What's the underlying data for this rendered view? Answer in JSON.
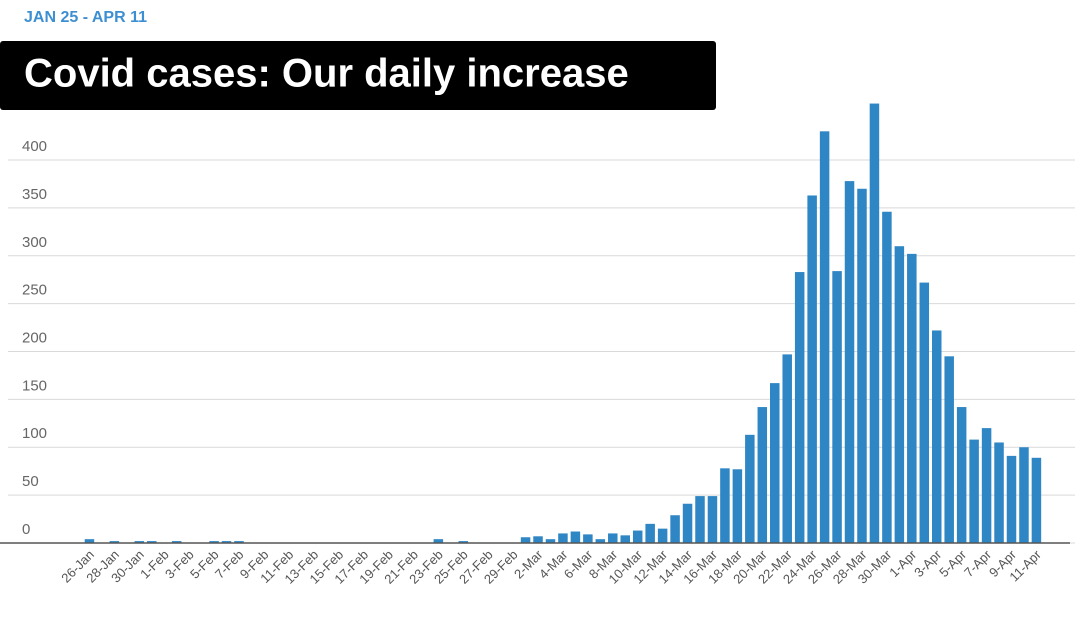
{
  "chart_data": {
    "type": "bar",
    "subtitle": "JAN 25 - APR 11",
    "title": "Covid cases: Our daily increase",
    "color": "#2f86c4",
    "grid": true,
    "ylim": [
      0,
      460
    ],
    "yticks": [
      0,
      50,
      100,
      150,
      200,
      250,
      300,
      350,
      400
    ],
    "categories": [
      null,
      "26-Jan",
      null,
      "28-Jan",
      null,
      "30-Jan",
      null,
      "1-Feb",
      null,
      "3-Feb",
      null,
      "5-Feb",
      null,
      "7-Feb",
      null,
      "9-Feb",
      null,
      "11-Feb",
      null,
      "13-Feb",
      null,
      "15-Feb",
      null,
      "17-Feb",
      null,
      "19-Feb",
      null,
      "21-Feb",
      null,
      "23-Feb",
      null,
      "25-Feb",
      null,
      "27-Feb",
      null,
      "29-Feb",
      null,
      "2-Mar",
      null,
      "4-Mar",
      null,
      "6-Mar",
      null,
      "8-Mar",
      null,
      "10-Mar",
      null,
      "12-Mar",
      null,
      "14-Mar",
      null,
      "16-Mar",
      null,
      "18-Mar",
      null,
      "20-Mar",
      null,
      "22-Mar",
      null,
      "24-Mar",
      null,
      "26-Mar",
      null,
      "28-Mar",
      null,
      "30-Mar",
      null,
      "1-Apr",
      null,
      "3-Apr",
      null,
      "5-Apr",
      null,
      "7-Apr",
      null,
      "9-Apr",
      null,
      "11-Apr"
    ],
    "values": [
      0,
      4,
      0,
      2,
      0,
      2,
      2,
      0,
      2,
      0,
      0,
      2,
      2,
      2,
      0,
      0,
      0,
      0,
      0,
      0,
      0,
      0,
      0,
      0,
      0,
      0,
      0,
      0,
      0,
      4,
      0,
      2,
      0,
      0,
      0,
      0,
      6,
      7,
      4,
      10,
      12,
      9,
      4,
      10,
      8,
      13,
      20,
      15,
      29,
      41,
      49,
      49,
      78,
      77,
      113,
      142,
      167,
      197,
      283,
      363,
      430,
      284,
      378,
      370,
      459,
      346,
      310,
      302,
      272,
      222,
      195,
      142,
      108,
      120,
      105,
      91,
      100,
      89
    ]
  }
}
